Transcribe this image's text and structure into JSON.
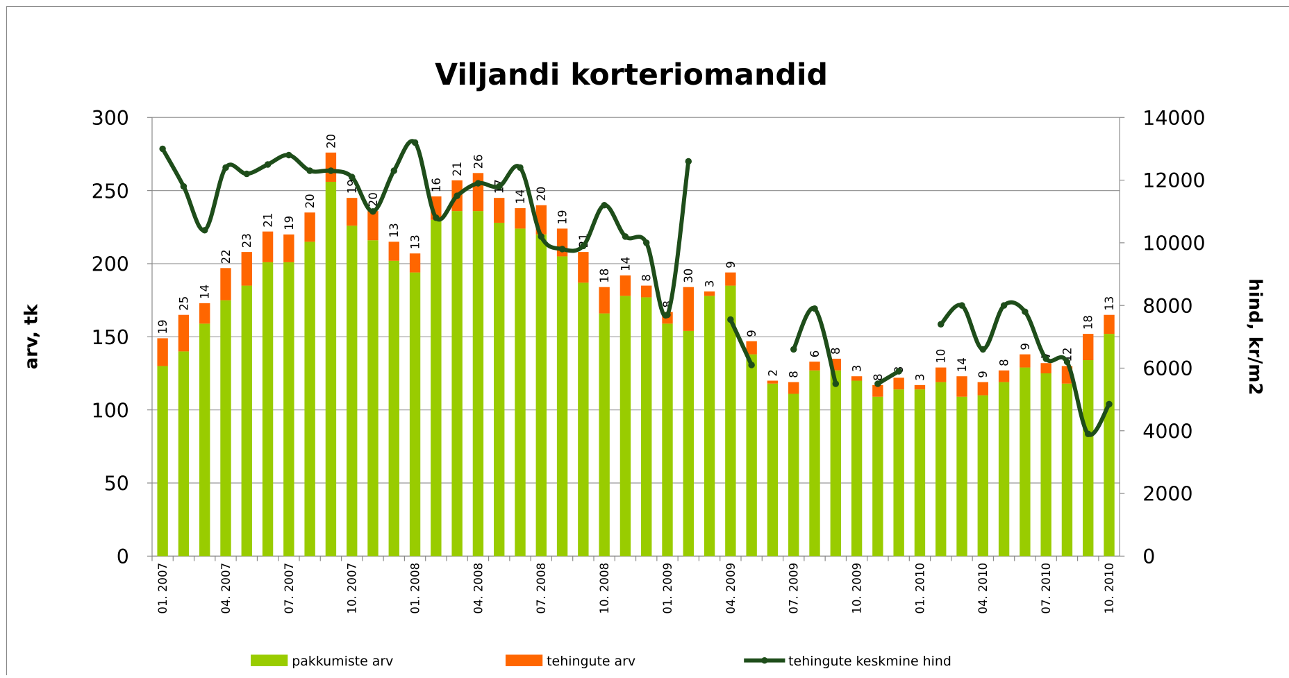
{
  "chart_data": {
    "type": "bar",
    "stacked": true,
    "title": "Viljandi korteriomandid",
    "y_label": "arv, tk",
    "y2_label": "hind, kr/m2",
    "categories": [
      "01. 2007",
      null,
      null,
      "04. 2007",
      null,
      null,
      "07. 2007",
      null,
      null,
      "10. 2007",
      null,
      null,
      "01. 2008",
      null,
      null,
      "04. 2008",
      null,
      null,
      "07. 2008",
      null,
      null,
      "10. 2008",
      null,
      null,
      "01. 2009",
      null,
      null,
      "04. 2009",
      null,
      null,
      "07. 2009",
      null,
      null,
      "10. 2009",
      null,
      null,
      "01. 2010",
      null,
      null,
      "04. 2010",
      null,
      null,
      "07. 2010",
      null,
      null,
      "10. 2010"
    ],
    "series": [
      {
        "name": "pakkumiste arv",
        "color": "#99cc00",
        "values": [
          130,
          140,
          159,
          175,
          185,
          201,
          201,
          215,
          256,
          226,
          216,
          202,
          194,
          230,
          236,
          236,
          228,
          224,
          220,
          205,
          187,
          166,
          178,
          177,
          159,
          154,
          178,
          185,
          138,
          118,
          111,
          127,
          127,
          120,
          109,
          114,
          114,
          119,
          109,
          110,
          119,
          129,
          125,
          118,
          134,
          152
        ]
      },
      {
        "name": "tehingute arv",
        "color": "#ff6600",
        "values": [
          19,
          25,
          14,
          22,
          23,
          21,
          19,
          20,
          20,
          19,
          20,
          13,
          13,
          16,
          21,
          26,
          17,
          14,
          20,
          19,
          21,
          18,
          14,
          8,
          8,
          30,
          3,
          9,
          9,
          2,
          8,
          6,
          8,
          3,
          8,
          8,
          3,
          10,
          14,
          9,
          8,
          9,
          7,
          12,
          18,
          13
        ]
      },
      {
        "name": "tehingute keskmine hind",
        "color": "#1e4d1a",
        "type": "line",
        "axis": "y2",
        "values": [
          13000,
          11800,
          10400,
          12400,
          12200,
          12500,
          12800,
          12300,
          12300,
          12100,
          11000,
          12300,
          13200,
          10800,
          11500,
          11900,
          11800,
          12400,
          10200,
          9800,
          9900,
          11200,
          10200,
          10000,
          7700,
          12600,
          null,
          7550,
          6100,
          null,
          6600,
          7900,
          5500,
          null,
          5500,
          5900,
          null,
          7400,
          8000,
          6600,
          8000,
          7800,
          6300,
          6200,
          3900,
          4850
        ]
      }
    ],
    "ylim": [
      0,
      300
    ],
    "yticks": [
      0,
      50,
      100,
      150,
      200,
      250,
      300
    ],
    "y2lim": [
      0,
      14000
    ],
    "y2ticks": [
      0,
      2000,
      4000,
      6000,
      8000,
      10000,
      12000,
      14000
    ],
    "grid": true,
    "legend": "bottom"
  }
}
